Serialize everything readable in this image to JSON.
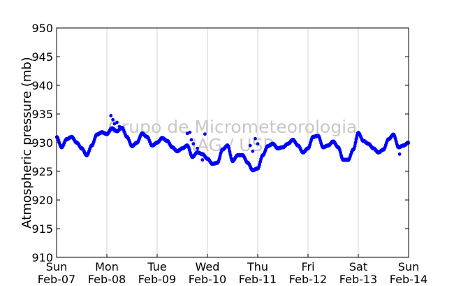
{
  "chart_data": {
    "type": "scatter",
    "ylabel": "Atmospheric pressure (mb)",
    "ylim": [
      910,
      950
    ],
    "yticks": [
      910,
      915,
      920,
      925,
      930,
      935,
      940,
      945,
      950
    ],
    "xlim": [
      0,
      7
    ],
    "xticks": [
      {
        "x": 0,
        "day": "Sun",
        "date": "Feb-07"
      },
      {
        "x": 1,
        "day": "Mon",
        "date": "Feb-08"
      },
      {
        "x": 2,
        "day": "Tue",
        "date": "Feb-09"
      },
      {
        "x": 3,
        "day": "Wed",
        "date": "Feb-10"
      },
      {
        "x": 4,
        "day": "Thu",
        "date": "Feb-11"
      },
      {
        "x": 5,
        "day": "Fri",
        "date": "Feb-12"
      },
      {
        "x": 6,
        "day": "Sat",
        "date": "Feb-13"
      },
      {
        "x": 7,
        "day": "Sun",
        "date": "Feb-14"
      }
    ],
    "grid": "vertical",
    "marker_color": "#0000ff",
    "series": [
      {
        "x": [
          0.0,
          0.1,
          0.2,
          0.3,
          0.4,
          0.5,
          0.6,
          0.7,
          0.8,
          0.9,
          1.0,
          1.1,
          1.2,
          1.3,
          1.4,
          1.5,
          1.6,
          1.7,
          1.8,
          1.9,
          2.0,
          2.1,
          2.2,
          2.3,
          2.4,
          2.5,
          2.6,
          2.7,
          2.8,
          2.9,
          3.0,
          3.1,
          3.2,
          3.3,
          3.4,
          3.5,
          3.6,
          3.7,
          3.8,
          3.9,
          4.0,
          4.1,
          4.2,
          4.3,
          4.4,
          4.5,
          4.6,
          4.7,
          4.8,
          4.9,
          5.0,
          5.1,
          5.2,
          5.3,
          5.4,
          5.5,
          5.6,
          5.7,
          5.8,
          5.9,
          6.0,
          6.1,
          6.2,
          6.3,
          6.4,
          6.5,
          6.6,
          6.7,
          6.8,
          6.9,
          7.0
        ],
        "y": [
          931.0,
          929.2,
          930.6,
          931.0,
          930.0,
          929.0,
          927.8,
          929.5,
          931.4,
          931.8,
          931.5,
          932.5,
          932.0,
          932.6,
          931.0,
          929.4,
          930.0,
          931.6,
          931.0,
          929.5,
          930.0,
          930.8,
          930.3,
          929.2,
          928.5,
          929.0,
          929.5,
          927.5,
          928.3,
          928.0,
          927.2,
          926.3,
          926.5,
          928.8,
          929.5,
          926.8,
          927.8,
          927.8,
          926.5,
          925.2,
          925.5,
          927.8,
          929.4,
          929.8,
          929.0,
          929.2,
          929.8,
          930.5,
          929.5,
          928.3,
          929.0,
          931.0,
          931.2,
          929.2,
          929.5,
          930.2,
          929.2,
          927.0,
          927.0,
          928.8,
          931.7,
          930.3,
          929.8,
          929.0,
          928.3,
          928.8,
          930.6,
          931.4,
          929.2,
          929.5,
          930.0
        ],
        "outliers_x": [
          1.08,
          1.12,
          1.15,
          1.2,
          1.25,
          2.6,
          2.65,
          2.68,
          2.72,
          2.8,
          2.9,
          2.95,
          3.85,
          3.9,
          3.95,
          4.0,
          6.78,
          6.82
        ],
        "outliers_y": [
          934.7,
          934.0,
          933.3,
          933.5,
          932.8,
          931.6,
          931.8,
          930.5,
          929.8,
          929.0,
          927.0,
          931.5,
          929.5,
          928.5,
          930.7,
          929.8,
          929.3,
          928.0
        ]
      }
    ],
    "watermark": [
      "Grupo de Micrometeorologia",
      "IAG / USP"
    ]
  }
}
